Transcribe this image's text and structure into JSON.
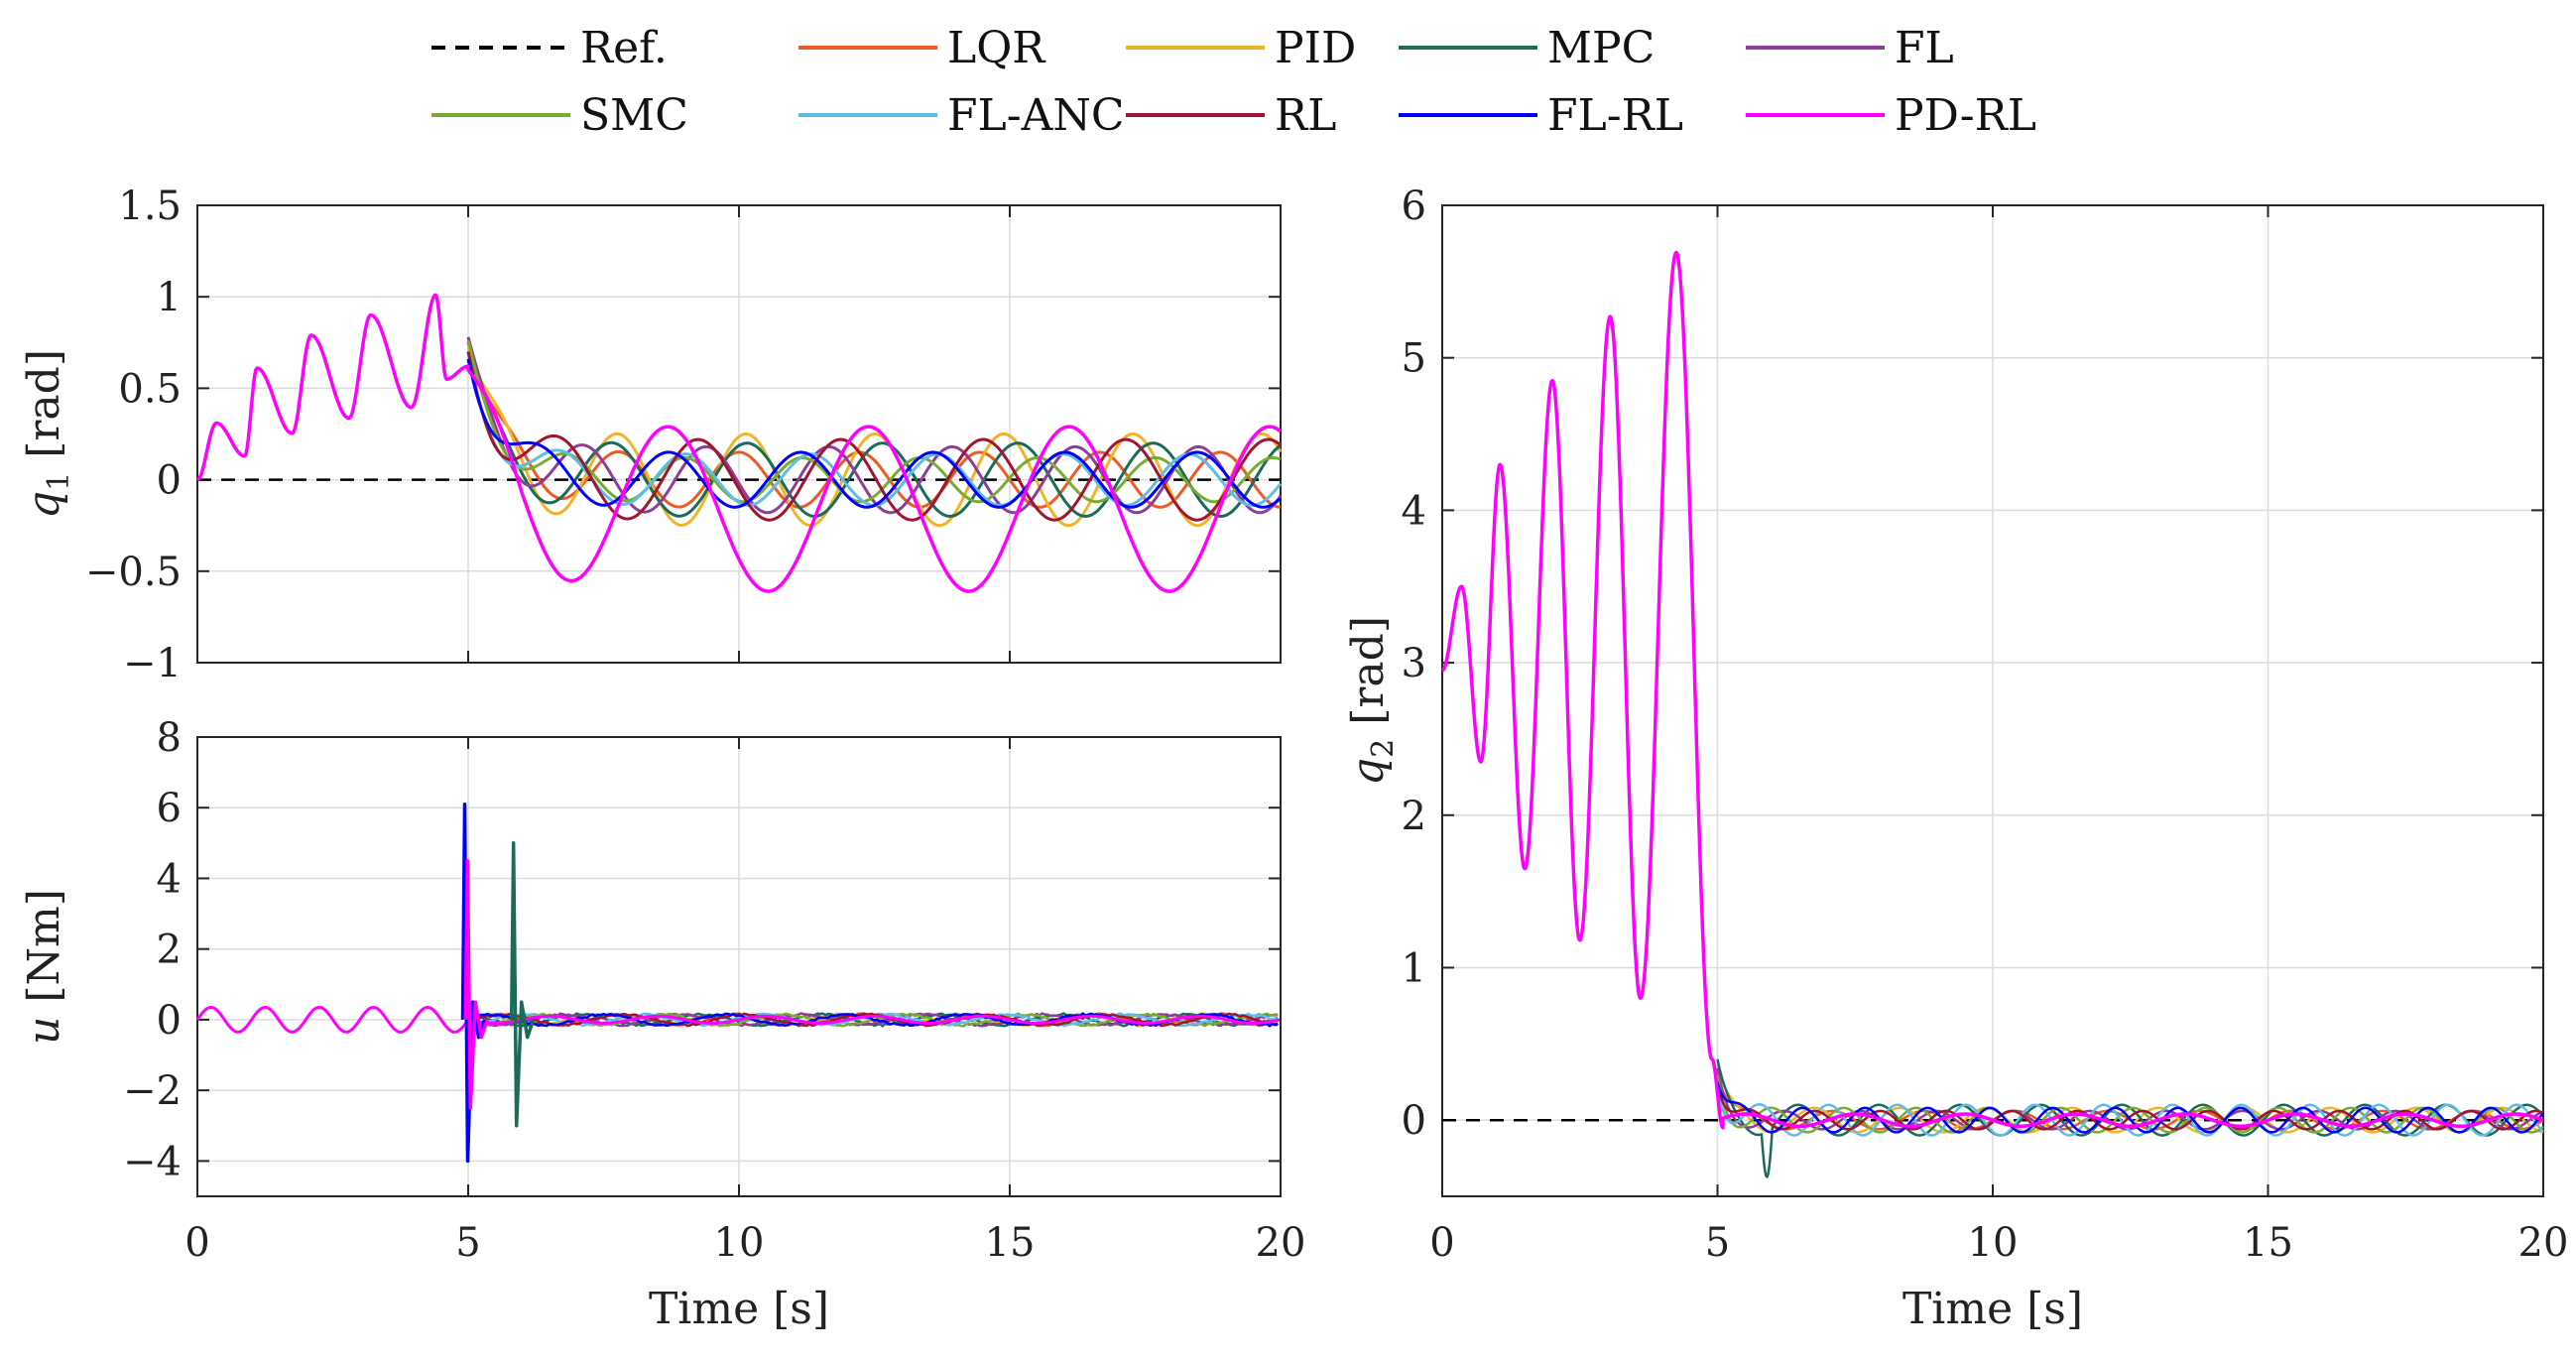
{
  "legend": {
    "rows": [
      [
        "Ref.",
        "LQR",
        "PID",
        "MPC",
        "FL"
      ],
      [
        "SMC",
        "FL-ANC",
        "RL",
        "FL-RL",
        "PD-RL"
      ]
    ]
  },
  "chart_data": [
    {
      "id": "q1",
      "type": "line",
      "ylabel_symbol": "q",
      "ylabel_sub": "1",
      "ylabel_unit": " [rad]",
      "xlabel": "",
      "xlim": [
        0,
        20
      ],
      "ylim": [
        -1,
        1.5
      ],
      "xticks": [
        "0",
        "5",
        "10",
        "15",
        "20"
      ],
      "xtick_values": [
        0,
        5,
        10,
        15,
        20
      ],
      "show_xtick_labels": false,
      "yticks": [
        "1.5",
        "1",
        "0.5",
        "0",
        "−0.5",
        "−1"
      ],
      "ytick_values": [
        1.5,
        1,
        0.5,
        0,
        -0.5,
        -1
      ],
      "grid": true
    },
    {
      "id": "u",
      "type": "line",
      "ylabel_symbol": "u",
      "ylabel_sub": "",
      "ylabel_unit": " [Nm]",
      "xlabel": "Time [s]",
      "xlim": [
        0,
        20
      ],
      "ylim": [
        -5,
        8
      ],
      "xticks": [
        "0",
        "5",
        "10",
        "15",
        "20"
      ],
      "xtick_values": [
        0,
        5,
        10,
        15,
        20
      ],
      "show_xtick_labels": true,
      "yticks": [
        "8",
        "6",
        "4",
        "2",
        "0",
        "−2",
        "−4"
      ],
      "ytick_values": [
        8,
        6,
        4,
        2,
        0,
        -2,
        -4
      ],
      "grid": true
    },
    {
      "id": "q2",
      "type": "line",
      "ylabel_symbol": "q",
      "ylabel_sub": "2",
      "ylabel_unit": " [rad]",
      "xlabel": "Time [s]",
      "xlim": [
        0,
        20
      ],
      "ylim": [
        -0.5,
        6
      ],
      "xticks": [
        "0",
        "5",
        "10",
        "15",
        "20"
      ],
      "xtick_values": [
        0,
        5,
        10,
        15,
        20
      ],
      "show_xtick_labels": true,
      "yticks": [
        "6",
        "5",
        "4",
        "3",
        "2",
        "1",
        "0"
      ],
      "ytick_values": [
        6,
        5,
        4,
        3,
        2,
        1,
        0
      ],
      "grid": true
    }
  ],
  "series": [
    {
      "name": "Ref.",
      "color": "#000000",
      "dashed": true
    },
    {
      "name": "LQR",
      "color": "#EE5A24"
    },
    {
      "name": "PID",
      "color": "#F0B429"
    },
    {
      "name": "MPC",
      "color": "#1B6B58"
    },
    {
      "name": "FL",
      "color": "#8E3E97"
    },
    {
      "name": "SMC",
      "color": "#77AC30"
    },
    {
      "name": "FL-ANC",
      "color": "#5DBCEA"
    },
    {
      "name": "RL",
      "color": "#A2142F"
    },
    {
      "name": "FL-RL",
      "color": "#0000FF"
    },
    {
      "name": "PD-RL",
      "color": "#FF00FF"
    }
  ],
  "dynamics": {
    "q1": {
      "switch_time": 5,
      "pre": {
        "peaks": [
          [
            0.35,
            0.31
          ],
          [
            1.1,
            0.61
          ],
          [
            2.1,
            0.79
          ],
          [
            3.2,
            0.9
          ],
          [
            4.4,
            1.01
          ]
        ],
        "start": 0.6
      },
      "series": [
        {
          "name": "LQR",
          "peak": 0.75,
          "amp": 0.15,
          "freq": 0.45,
          "phase": 0.0
        },
        {
          "name": "PID",
          "peak": 0.72,
          "amp": 0.25,
          "freq": 0.42,
          "phase": 0.6
        },
        {
          "name": "MPC",
          "peak": 0.7,
          "amp": 0.2,
          "freq": 0.4,
          "phase": 1.2
        },
        {
          "name": "FL",
          "peak": 0.78,
          "amp": 0.18,
          "freq": 0.44,
          "phase": 2.0
        },
        {
          "name": "SMC",
          "peak": 0.76,
          "amp": 0.12,
          "freq": 0.46,
          "phase": 2.6
        },
        {
          "name": "FL-ANC",
          "peak": 0.65,
          "amp": 0.14,
          "freq": 0.43,
          "phase": 3.3
        },
        {
          "name": "RL",
          "peak": 0.7,
          "amp": 0.22,
          "freq": 0.38,
          "phase": 4.0
        },
        {
          "name": "FL-RL",
          "peak": 0.66,
          "amp": 0.15,
          "freq": 0.41,
          "phase": 4.6
        },
        {
          "name": "PD-RL",
          "peak": 0.6,
          "amp": 0.45,
          "freq": 0.27,
          "phase": 1.6,
          "offset": -0.16
        }
      ]
    },
    "u": {
      "spikes": [
        {
          "name": "FL-RL",
          "t": 4.9,
          "hi": 6.1,
          "lo": -4.0
        },
        {
          "name": "PD-RL",
          "t": 4.95,
          "hi": 4.5,
          "lo": -2.5
        },
        {
          "name": "MPC",
          "t": 5.8,
          "hi": 5.0,
          "lo": -3.0
        }
      ]
    },
    "q2": {
      "pre_peaks": [
        [
          0.35,
          3.5
        ],
        [
          1.05,
          4.3
        ],
        [
          2.0,
          4.85
        ],
        [
          3.05,
          5.27
        ],
        [
          4.25,
          5.69
        ]
      ],
      "pre_troughs": [
        [
          0.7,
          2.35
        ],
        [
          1.5,
          1.65
        ],
        [
          2.5,
          1.18
        ],
        [
          3.6,
          0.8
        ]
      ],
      "start": 2.95
    }
  }
}
